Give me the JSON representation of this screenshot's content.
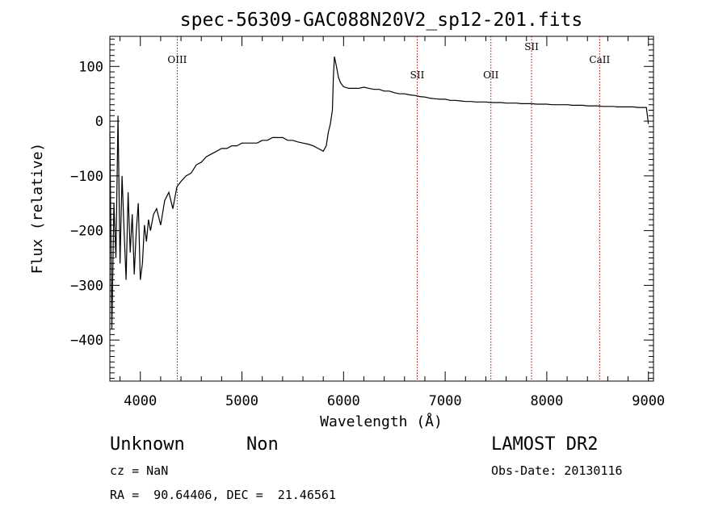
{
  "chart_data": {
    "type": "line",
    "title": "spec-56309-GAC088N20V2_sp12-201.fits",
    "xlabel": "Wavelength (Å)",
    "ylabel": "Flux (relative)",
    "xlim": [
      3700,
      9050
    ],
    "ylim": [
      -475,
      155
    ],
    "xticks": [
      4000,
      5000,
      6000,
      7000,
      8000,
      9000
    ],
    "yticks": [
      -400,
      -300,
      -200,
      -100,
      0,
      100
    ],
    "grid": false,
    "series": [
      {
        "x": [
          3700,
          3720,
          3740,
          3760,
          3780,
          3800,
          3820,
          3840,
          3860,
          3880,
          3900,
          3920,
          3940,
          3960,
          3980,
          4000,
          4020,
          4040,
          4060,
          4080,
          4100,
          4130,
          4160,
          4200,
          4240,
          4280,
          4320,
          4360,
          4400,
          4450,
          4500,
          4550,
          4600,
          4650,
          4700,
          4750,
          4800,
          4850,
          4900,
          4950,
          5000,
          5050,
          5100,
          5150,
          5200,
          5250,
          5300,
          5350,
          5400,
          5450,
          5500,
          5550,
          5600,
          5650,
          5700,
          5750,
          5800,
          5830,
          5850,
          5870,
          5890,
          5900,
          5910,
          5930,
          5950,
          5970,
          6000,
          6050,
          6100,
          6150,
          6200,
          6250,
          6300,
          6350,
          6400,
          6450,
          6500,
          6550,
          6600,
          6650,
          6700,
          6750,
          6800,
          6850,
          6900,
          6950,
          7000,
          7050,
          7100,
          7150,
          7200,
          7250,
          7300,
          7350,
          7400,
          7450,
          7500,
          7550,
          7600,
          7650,
          7700,
          7750,
          7800,
          7850,
          7900,
          7950,
          8000,
          8050,
          8100,
          8150,
          8200,
          8250,
          8300,
          8350,
          8400,
          8450,
          8500,
          8550,
          8600,
          8650,
          8700,
          8750,
          8800,
          8850,
          8900,
          8950,
          8980,
          9000
        ],
        "y": [
          -20,
          -380,
          -150,
          -250,
          10,
          -260,
          -100,
          -200,
          -290,
          -130,
          -240,
          -170,
          -280,
          -200,
          -150,
          -290,
          -260,
          -190,
          -220,
          -180,
          -200,
          -170,
          -160,
          -190,
          -145,
          -130,
          -160,
          -120,
          -110,
          -100,
          -95,
          -80,
          -75,
          -65,
          -60,
          -55,
          -50,
          -50,
          -45,
          -45,
          -40,
          -40,
          -40,
          -40,
          -35,
          -35,
          -30,
          -30,
          -30,
          -35,
          -35,
          -38,
          -40,
          -42,
          -45,
          -50,
          -55,
          -45,
          -20,
          -5,
          20,
          80,
          118,
          100,
          80,
          70,
          63,
          60,
          60,
          60,
          62,
          60,
          58,
          58,
          55,
          55,
          52,
          50,
          50,
          48,
          47,
          45,
          44,
          42,
          41,
          40,
          40,
          38,
          38,
          37,
          36,
          36,
          35,
          35,
          35,
          34,
          34,
          34,
          33,
          33,
          33,
          32,
          32,
          32,
          31,
          31,
          31,
          30,
          30,
          30,
          30,
          29,
          29,
          29,
          28,
          28,
          28,
          27,
          27,
          27,
          26,
          26,
          26,
          26,
          25,
          25,
          25,
          -5
        ]
      }
    ],
    "lines": [
      {
        "label": "OIII",
        "x": 4363
      },
      {
        "label": "SII",
        "x": 6725
      },
      {
        "label": "OII",
        "x": 7450
      },
      {
        "label": "SII",
        "x": 7850
      },
      {
        "label": "CaII",
        "x": 8520
      }
    ]
  },
  "info": {
    "class_label": "Unknown",
    "subclass_label": "Non",
    "survey": "LAMOST DR2",
    "cz": "cz = NaN",
    "obs_date": "Obs-Date: 20130116",
    "radec": "RA =  90.64406, DEC =  21.46561"
  },
  "colors": {
    "spectrum": "#000000",
    "lines": "#aa0000",
    "axes": "#000000"
  }
}
